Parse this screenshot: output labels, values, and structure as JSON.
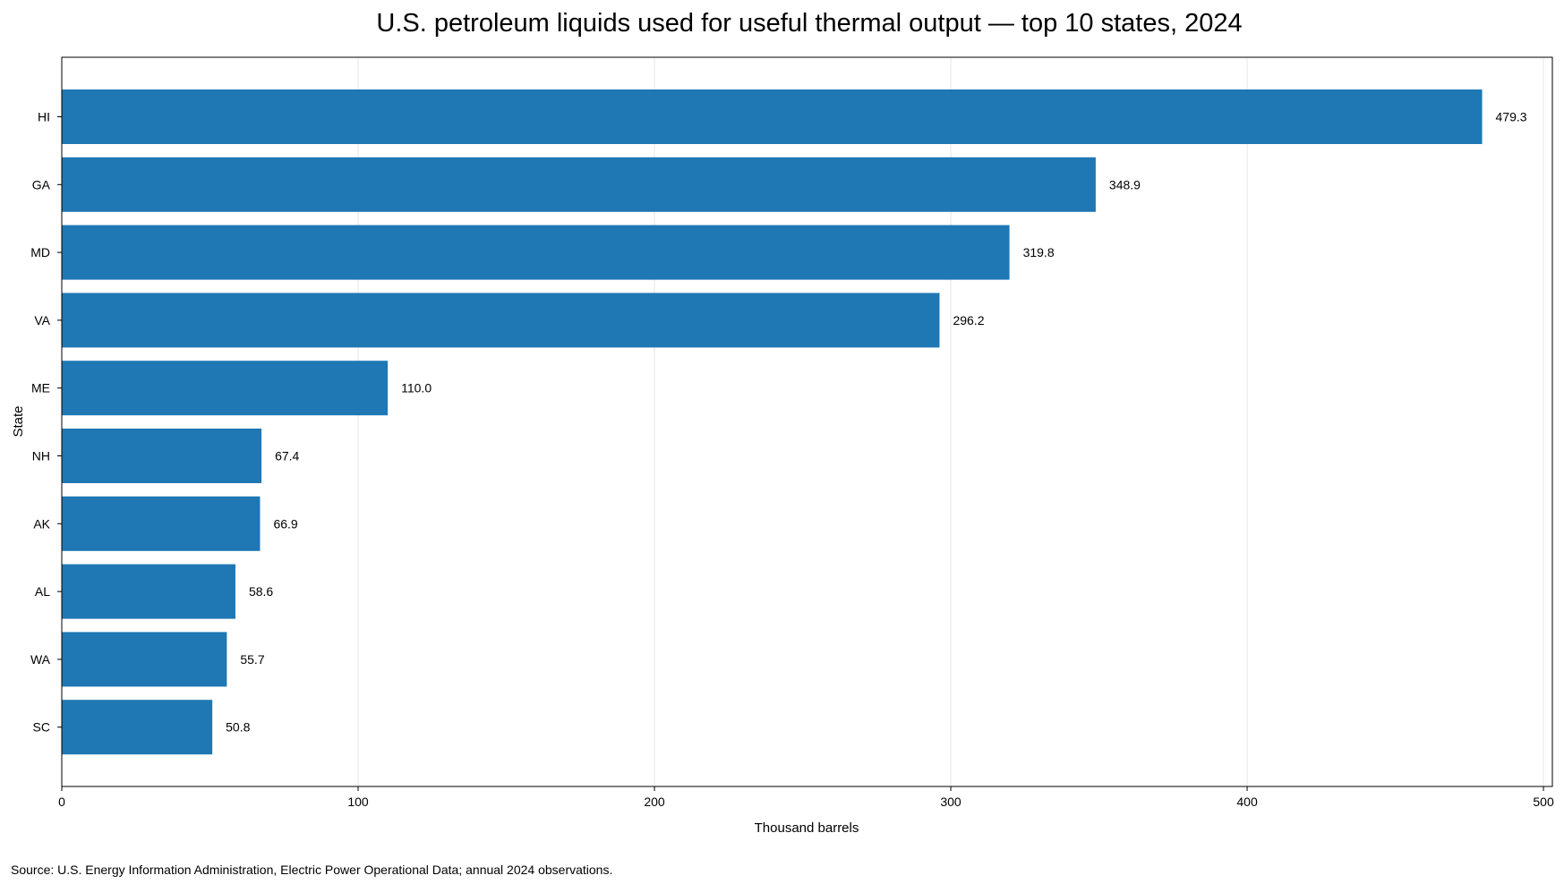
{
  "chart_data": {
    "type": "bar",
    "orientation": "horizontal",
    "title": "U.S. petroleum liquids used for useful thermal output — top 10 states, 2024",
    "xlabel": "Thousand barrels",
    "ylabel": "State",
    "categories": [
      "HI",
      "GA",
      "MD",
      "VA",
      "ME",
      "NH",
      "AK",
      "AL",
      "WA",
      "SC"
    ],
    "values": [
      479.3,
      348.9,
      319.8,
      296.2,
      110.0,
      67.4,
      66.9,
      58.6,
      55.7,
      50.8
    ],
    "value_labels": [
      "479.3",
      "348.9",
      "319.8",
      "296.2",
      "110.0",
      "67.4",
      "66.9",
      "58.6",
      "55.7",
      "50.8"
    ],
    "xlim": [
      0,
      503
    ],
    "xticks": [
      0,
      100,
      200,
      300,
      400,
      500
    ],
    "xtick_labels": [
      "0",
      "100",
      "200",
      "300",
      "400",
      "500"
    ],
    "grid": "vertical",
    "legend": "none",
    "bar_color": "#1f77b4",
    "grid_color": "#e6e6e6",
    "source": "Source: U.S. Energy Information Administration, Electric Power Operational Data; annual 2024 observations."
  }
}
